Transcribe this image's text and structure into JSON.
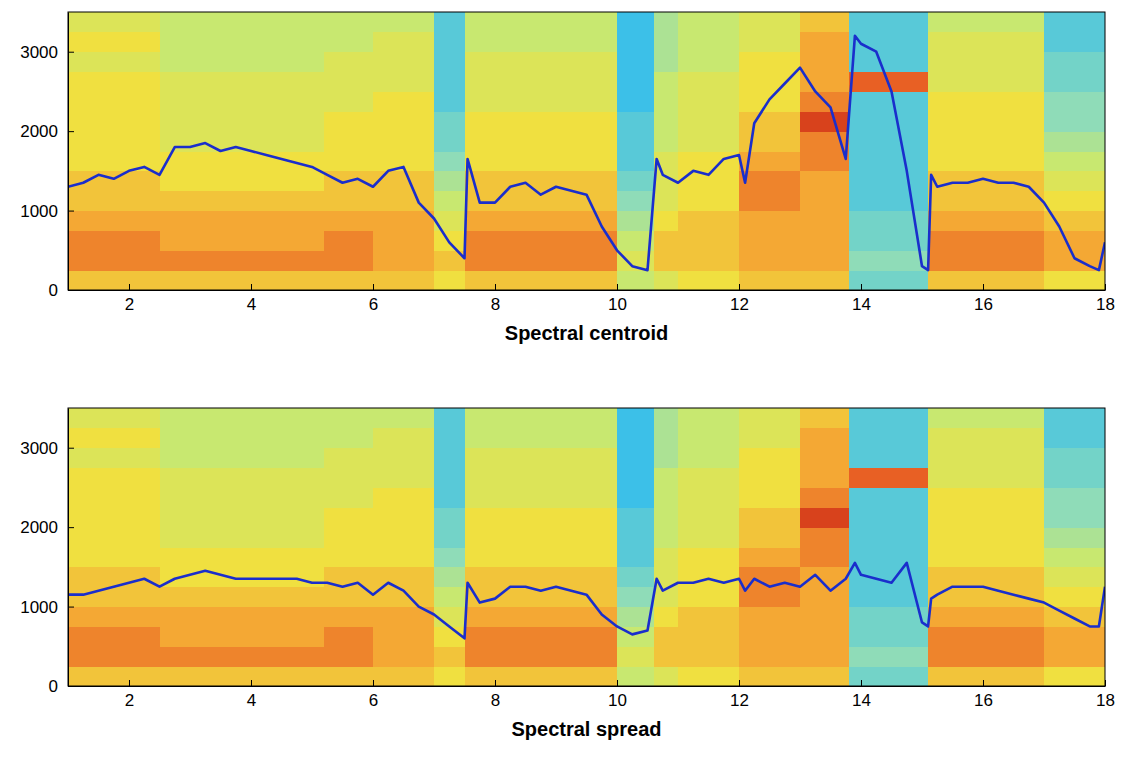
{
  "chart_data": [
    {
      "type": "line",
      "xlabel": "Spectral centroid",
      "xlim": [
        1,
        18
      ],
      "xticks": [
        2,
        4,
        6,
        8,
        10,
        12,
        14,
        16,
        18
      ],
      "ylim": [
        0,
        3500
      ],
      "yticks": [
        0,
        1000,
        2000,
        3000
      ],
      "x": [
        1,
        1.25,
        1.5,
        1.75,
        2,
        2.25,
        2.5,
        2.75,
        3,
        3.25,
        3.5,
        3.75,
        4,
        4.25,
        4.5,
        4.75,
        5,
        5.25,
        5.5,
        5.75,
        6,
        6.25,
        6.5,
        6.75,
        7,
        7.25,
        7.5,
        7.55,
        7.75,
        8,
        8.25,
        8.5,
        8.75,
        9,
        9.25,
        9.5,
        9.75,
        10,
        10.25,
        10.5,
        10.65,
        10.75,
        11,
        11.25,
        11.5,
        11.75,
        12,
        12.1,
        12.25,
        12.5,
        12.75,
        13,
        13.25,
        13.5,
        13.75,
        13.9,
        14,
        14.25,
        14.5,
        14.75,
        15,
        15.1,
        15.15,
        15.25,
        15.5,
        15.75,
        16,
        16.25,
        16.5,
        16.75,
        17,
        17.25,
        17.5,
        17.75,
        17.9,
        18
      ],
      "series": [
        {
          "color": "#1a2ecc",
          "values": [
            1300,
            1350,
            1450,
            1400,
            1500,
            1550,
            1450,
            1800,
            1800,
            1850,
            1750,
            1800,
            1750,
            1700,
            1650,
            1600,
            1550,
            1450,
            1350,
            1400,
            1300,
            1500,
            1550,
            1100,
            900,
            600,
            400,
            1650,
            1100,
            1100,
            1300,
            1350,
            1200,
            1300,
            1250,
            1200,
            800,
            500,
            300,
            250,
            1650,
            1450,
            1350,
            1500,
            1450,
            1650,
            1700,
            1350,
            2100,
            2400,
            2600,
            2800,
            2500,
            2300,
            1650,
            3200,
            3100,
            3000,
            2500,
            1500,
            300,
            250,
            1450,
            1300,
            1350,
            1350,
            1400,
            1350,
            1350,
            1300,
            1100,
            800,
            400,
            300,
            250,
            600
          ]
        }
      ],
      "zlim": [
        0,
        10
      ],
      "heatmap": {
        "x_edges": [
          1,
          2.5,
          5.2,
          6,
          7,
          7.5,
          10,
          10.6,
          11,
          12,
          13,
          13.8,
          15.1,
          17,
          18
        ],
        "y_edges": [
          0,
          250,
          500,
          750,
          1000,
          1250,
          1500,
          1750,
          2000,
          2250,
          2500,
          2750,
          3000,
          3250,
          3500
        ],
        "z": [
          [
            7,
            7,
            7,
            7,
            6.5,
            7,
            5.5,
            6,
            6.5,
            7,
            7,
            4,
            7,
            6.5
          ],
          [
            8,
            8,
            8,
            7.5,
            7,
            8,
            6,
            7,
            7,
            7.5,
            7.5,
            4.5,
            8,
            7.5
          ],
          [
            8,
            7.5,
            8,
            7.5,
            6.5,
            8,
            5.5,
            7,
            7,
            7.5,
            7.5,
            4,
            8,
            7.5
          ],
          [
            7.5,
            7.5,
            7.5,
            7.5,
            6,
            7.5,
            5,
            6.5,
            7,
            7.5,
            7.5,
            4,
            7.5,
            7
          ],
          [
            7,
            7,
            7,
            7,
            5.5,
            7,
            4.5,
            6,
            6.5,
            8,
            7.5,
            3.5,
            7,
            6.5
          ],
          [
            7,
            6.5,
            7,
            7,
            5,
            7,
            4,
            6,
            6.5,
            8,
            7.5,
            3.5,
            7,
            6
          ],
          [
            6.5,
            6.5,
            6.5,
            6.5,
            4.5,
            6.5,
            3.5,
            6,
            6.5,
            7.5,
            8,
            3.5,
            6.5,
            5.5
          ],
          [
            6.5,
            6,
            6.5,
            6.5,
            4,
            6.5,
            3.5,
            5.5,
            6,
            7,
            8,
            3.5,
            6.5,
            5
          ],
          [
            6.5,
            6,
            6.5,
            6.5,
            4,
            6.5,
            3.5,
            5.5,
            6,
            7,
            9,
            3.5,
            6.5,
            4.5
          ],
          [
            6.5,
            6,
            6,
            6.5,
            3.5,
            6,
            3,
            5.5,
            6,
            6.5,
            8,
            3.5,
            6.5,
            4.5
          ],
          [
            6.5,
            6,
            6,
            6,
            3.5,
            6,
            3,
            5.5,
            6,
            6.5,
            7.5,
            8.5,
            6,
            4
          ],
          [
            6,
            5.5,
            6,
            6,
            3.5,
            6,
            3,
            5,
            5.5,
            6.5,
            7.5,
            3.5,
            6,
            4
          ],
          [
            6.5,
            5.5,
            5.5,
            6,
            3.5,
            5.5,
            3,
            5,
            5.5,
            6,
            7.5,
            3.5,
            6,
            3.5
          ],
          [
            6,
            5.5,
            5.5,
            5.5,
            3.5,
            5.5,
            3,
            5,
            5.5,
            6,
            7,
            3.5,
            5.5,
            3.5
          ]
        ]
      }
    },
    {
      "type": "line",
      "xlabel": "Spectral spread",
      "xlim": [
        1,
        18
      ],
      "xticks": [
        2,
        4,
        6,
        8,
        10,
        12,
        14,
        16,
        18
      ],
      "ylim": [
        0,
        3500
      ],
      "yticks": [
        0,
        1000,
        2000,
        3000
      ],
      "x": [
        1,
        1.25,
        1.5,
        1.75,
        2,
        2.25,
        2.5,
        2.75,
        3,
        3.25,
        3.5,
        3.75,
        4,
        4.25,
        4.5,
        4.75,
        5,
        5.25,
        5.5,
        5.75,
        6,
        6.25,
        6.5,
        6.75,
        7,
        7.25,
        7.5,
        7.55,
        7.75,
        8,
        8.25,
        8.5,
        8.75,
        9,
        9.25,
        9.5,
        9.75,
        10,
        10.25,
        10.5,
        10.65,
        10.75,
        11,
        11.25,
        11.5,
        11.75,
        12,
        12.1,
        12.25,
        12.5,
        12.75,
        13,
        13.25,
        13.5,
        13.75,
        13.9,
        14,
        14.25,
        14.5,
        14.75,
        15,
        15.1,
        15.15,
        15.25,
        15.5,
        15.75,
        16,
        16.25,
        16.5,
        16.75,
        17,
        17.25,
        17.5,
        17.75,
        17.9,
        18
      ],
      "series": [
        {
          "color": "#1a2ecc",
          "values": [
            1150,
            1150,
            1200,
            1250,
            1300,
            1350,
            1250,
            1350,
            1400,
            1450,
            1400,
            1350,
            1350,
            1350,
            1350,
            1350,
            1300,
            1300,
            1250,
            1300,
            1150,
            1300,
            1200,
            1000,
            900,
            750,
            600,
            1300,
            1050,
            1100,
            1250,
            1250,
            1200,
            1250,
            1200,
            1150,
            900,
            750,
            650,
            700,
            1350,
            1200,
            1300,
            1300,
            1350,
            1300,
            1350,
            1200,
            1350,
            1250,
            1300,
            1250,
            1400,
            1200,
            1350,
            1550,
            1400,
            1350,
            1300,
            1550,
            800,
            750,
            1100,
            1150,
            1250,
            1250,
            1250,
            1200,
            1150,
            1100,
            1050,
            950,
            850,
            750,
            750,
            1250
          ]
        }
      ],
      "zlim": [
        0,
        10
      ],
      "heatmap": {
        "x_edges": [
          1,
          2.5,
          5.2,
          6,
          7,
          7.5,
          10,
          10.6,
          11,
          12,
          13,
          13.8,
          15.1,
          17,
          18
        ],
        "y_edges": [
          0,
          250,
          500,
          750,
          1000,
          1250,
          1500,
          1750,
          2000,
          2250,
          2500,
          2750,
          3000,
          3250,
          3500
        ],
        "z": [
          [
            7,
            7,
            7,
            7,
            6.5,
            7,
            5.5,
            6,
            6.5,
            7,
            7,
            4,
            7,
            6.5
          ],
          [
            8,
            8,
            8,
            7.5,
            7,
            8,
            6,
            7,
            7,
            7.5,
            7.5,
            4.5,
            8,
            7.5
          ],
          [
            8,
            7.5,
            8,
            7.5,
            6.5,
            8,
            5.5,
            7,
            7,
            7.5,
            7.5,
            4,
            8,
            7.5
          ],
          [
            7.5,
            7.5,
            7.5,
            7.5,
            6,
            7.5,
            5,
            6.5,
            7,
            7.5,
            7.5,
            4,
            7.5,
            7
          ],
          [
            7,
            7,
            7,
            7,
            5.5,
            7,
            4.5,
            6,
            6.5,
            8,
            7.5,
            3.5,
            7,
            6.5
          ],
          [
            7,
            6.5,
            7,
            7,
            5,
            7,
            4,
            6,
            6.5,
            8,
            7.5,
            3.5,
            7,
            6
          ],
          [
            6.5,
            6.5,
            6.5,
            6.5,
            4.5,
            6.5,
            3.5,
            6,
            6.5,
            7.5,
            8,
            3.5,
            6.5,
            5.5
          ],
          [
            6.5,
            6,
            6.5,
            6.5,
            4,
            6.5,
            3.5,
            5.5,
            6,
            7,
            8,
            3.5,
            6.5,
            5
          ],
          [
            6.5,
            6,
            6.5,
            6.5,
            4,
            6.5,
            3.5,
            5.5,
            6,
            7,
            9,
            3.5,
            6.5,
            4.5
          ],
          [
            6.5,
            6,
            6,
            6.5,
            3.5,
            6,
            3,
            5.5,
            6,
            6.5,
            8,
            3.5,
            6.5,
            4.5
          ],
          [
            6.5,
            6,
            6,
            6,
            3.5,
            6,
            3,
            5.5,
            6,
            6.5,
            7.5,
            8.5,
            6,
            4
          ],
          [
            6,
            5.5,
            6,
            6,
            3.5,
            6,
            3,
            5,
            5.5,
            6.5,
            7.5,
            3.5,
            6,
            4
          ],
          [
            6.5,
            5.5,
            5.5,
            6,
            3.5,
            5.5,
            3,
            5,
            5.5,
            6,
            7.5,
            3.5,
            6,
            3.5
          ],
          [
            6,
            5.5,
            5.5,
            5.5,
            3.5,
            5.5,
            3,
            5,
            5.5,
            6,
            7,
            3.5,
            5.5,
            3.5
          ]
        ]
      }
    }
  ]
}
